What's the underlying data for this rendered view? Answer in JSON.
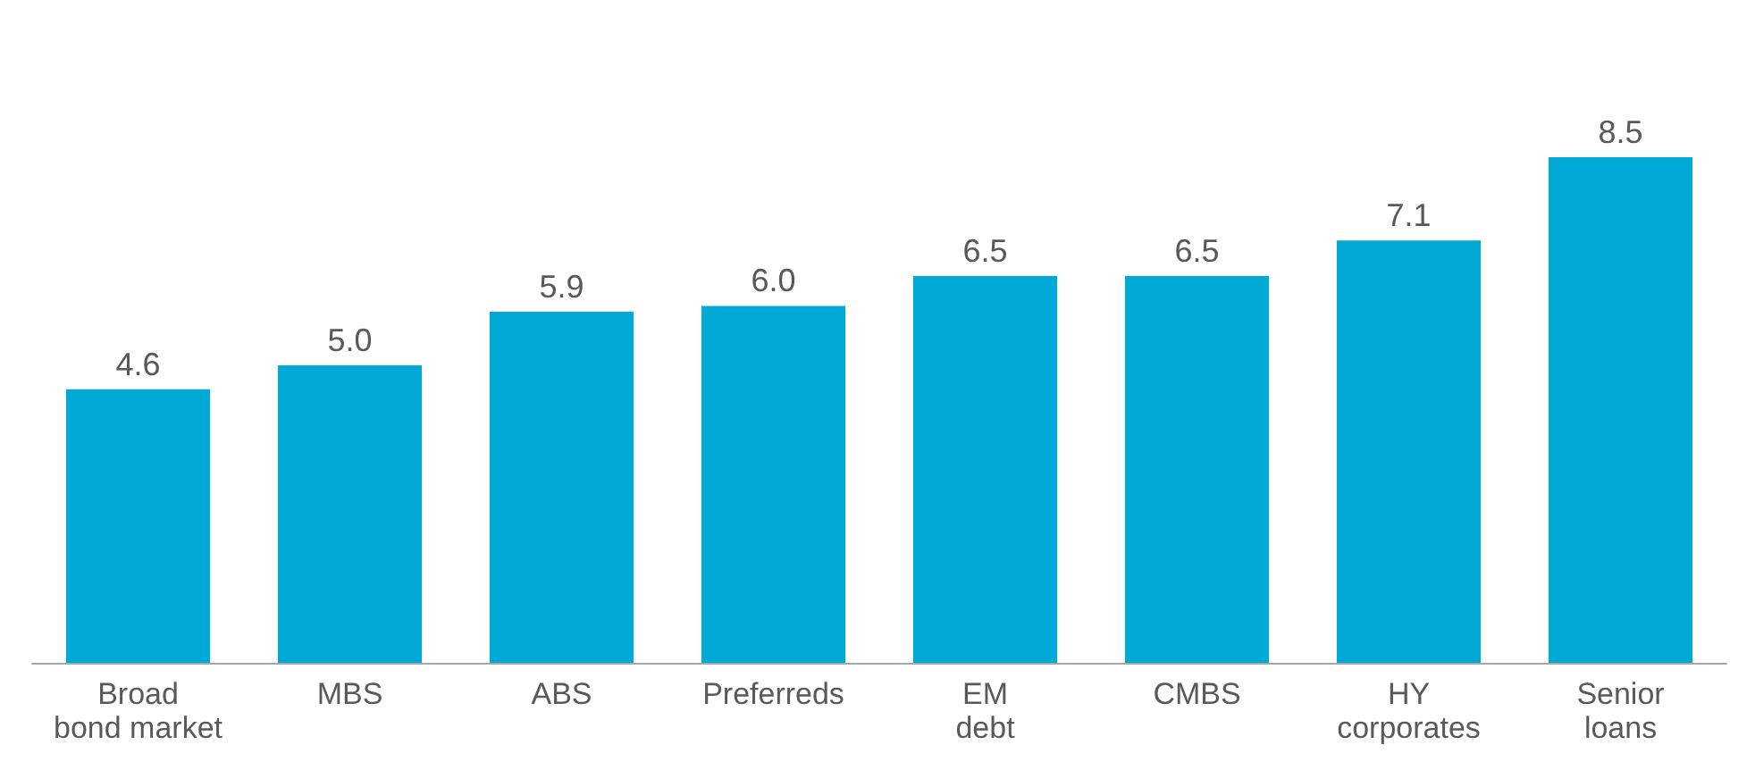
{
  "chart_data": {
    "type": "bar",
    "categories": [
      "Broad\nbond market",
      "MBS",
      "ABS",
      "Preferreds",
      "EM\ndebt",
      "CMBS",
      "HY\ncorporates",
      "Senior\nloans"
    ],
    "values": [
      4.6,
      5.0,
      5.9,
      6.0,
      6.5,
      6.5,
      7.1,
      8.5
    ],
    "value_labels": [
      "4.6",
      "5.0",
      "5.9",
      "6.0",
      "6.5",
      "6.5",
      "7.1",
      "8.5"
    ],
    "color": "#00a9d6"
  }
}
